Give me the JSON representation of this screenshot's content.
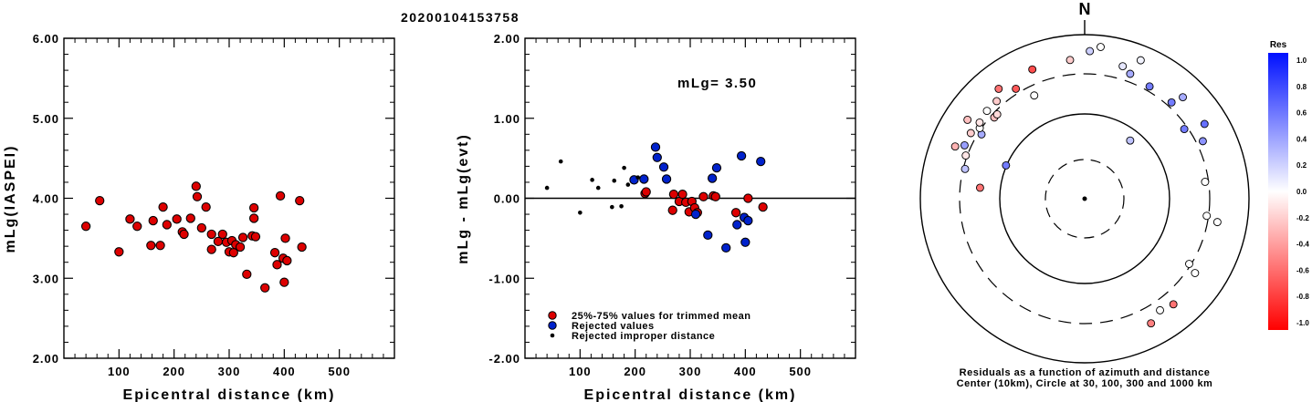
{
  "title": "20200104153758",
  "chart_data": [
    {
      "type": "scatter",
      "xlabel": "Epicentral distance (km)",
      "ylabel": "mLg(IASPEI)",
      "xlim": [
        0,
        600
      ],
      "ylim": [
        2.0,
        6.0
      ],
      "xticks": [
        "100",
        "200",
        "300",
        "400",
        "500"
      ],
      "yticks": [
        "2.00",
        "3.00",
        "4.00",
        "5.00",
        "6.00"
      ],
      "series": [
        {
          "color": "#dd0000",
          "points": [
            [
              40,
              3.65
            ],
            [
              65,
              3.97
            ],
            [
              100,
              3.33
            ],
            [
              120,
              3.74
            ],
            [
              133,
              3.65
            ],
            [
              158,
              3.41
            ],
            [
              162,
              3.72
            ],
            [
              175,
              3.41
            ],
            [
              180,
              3.89
            ],
            [
              187,
              3.67
            ],
            [
              205,
              3.74
            ],
            [
              215,
              3.58
            ],
            [
              218,
              3.55
            ],
            [
              230,
              3.75
            ],
            [
              240,
              4.15
            ],
            [
              242,
              4.02
            ],
            [
              250,
              3.63
            ],
            [
              258,
              3.89
            ],
            [
              268,
              3.55
            ],
            [
              268,
              3.36
            ],
            [
              280,
              3.46
            ],
            [
              288,
              3.55
            ],
            [
              295,
              3.45
            ],
            [
              300,
              3.33
            ],
            [
              305,
              3.47
            ],
            [
              308,
              3.32
            ],
            [
              312,
              3.42
            ],
            [
              320,
              3.39
            ],
            [
              325,
              3.51
            ],
            [
              332,
              3.05
            ],
            [
              342,
              3.53
            ],
            [
              345,
              3.88
            ],
            [
              345,
              3.75
            ],
            [
              348,
              3.52
            ],
            [
              365,
              2.88
            ],
            [
              383,
              3.32
            ],
            [
              387,
              3.17
            ],
            [
              393,
              4.03
            ],
            [
              398,
              3.25
            ],
            [
              400,
              2.95
            ],
            [
              402,
              3.5
            ],
            [
              405,
              3.22
            ],
            [
              428,
              3.97
            ],
            [
              432,
              3.39
            ]
          ]
        }
      ]
    },
    {
      "type": "scatter",
      "xlabel": "Epicentral distance (km)",
      "ylabel": "mLg - mLg(evt)",
      "xlim": [
        0,
        600
      ],
      "ylim": [
        -2.0,
        2.0
      ],
      "xticks": [
        "100",
        "200",
        "300",
        "400",
        "500"
      ],
      "yticks": [
        "-2.00",
        "-1.00",
        "0.00",
        "1.00",
        "2.00"
      ],
      "annotation": "mLg= 3.50",
      "legend": [
        {
          "label": "25%-75% values for trimmed mean",
          "color": "#dd0000"
        },
        {
          "label": "Rejected values",
          "color": "#0022cc"
        },
        {
          "label": "Rejected improper distance",
          "color": "#000000"
        }
      ],
      "series": [
        {
          "name": "25%-75% values for trimmed mean",
          "color": "#dd0000",
          "points": [
            [
              218,
              0.06
            ],
            [
              220,
              0.08
            ],
            [
              268,
              -0.15
            ],
            [
              270,
              0.05
            ],
            [
              280,
              -0.04
            ],
            [
              286,
              0.05
            ],
            [
              292,
              -0.05
            ],
            [
              298,
              -0.17
            ],
            [
              303,
              -0.04
            ],
            [
              308,
              -0.12
            ],
            [
              313,
              -0.18
            ],
            [
              324,
              0.02
            ],
            [
              342,
              0.03
            ],
            [
              346,
              0.02
            ],
            [
              383,
              -0.18
            ],
            [
              405,
              0.0
            ],
            [
              432,
              -0.11
            ]
          ]
        },
        {
          "name": "Rejected values",
          "color": "#0022cc",
          "points": [
            [
              198,
              0.23
            ],
            [
              216,
              0.24
            ],
            [
              237,
              0.64
            ],
            [
              240,
              0.51
            ],
            [
              252,
              0.39
            ],
            [
              257,
              0.24
            ],
            [
              310,
              -0.2
            ],
            [
              332,
              -0.46
            ],
            [
              340,
              0.25
            ],
            [
              348,
              0.38
            ],
            [
              365,
              -0.62
            ],
            [
              385,
              -0.33
            ],
            [
              393,
              0.53
            ],
            [
              398,
              -0.24
            ],
            [
              400,
              -0.55
            ],
            [
              405,
              -0.28
            ],
            [
              428,
              0.46
            ]
          ]
        },
        {
          "name": "Rejected improper distance",
          "color": "#000000",
          "points": [
            [
              40,
              0.13
            ],
            [
              65,
              0.46
            ],
            [
              100,
              -0.18
            ],
            [
              122,
              0.23
            ],
            [
              133,
              0.13
            ],
            [
              158,
              -0.11
            ],
            [
              162,
              0.22
            ],
            [
              175,
              -0.1
            ],
            [
              180,
              0.38
            ],
            [
              187,
              0.17
            ],
            [
              205,
              0.26
            ]
          ]
        }
      ]
    },
    {
      "type": "scatter",
      "north_label": "N",
      "caption_line1": "Residuals as a function of azimuth and distance",
      "caption_line2": "Center (10km), Circle at 30, 100, 300 and 1000 km",
      "colorbar_title": "Res",
      "colorbar_ticks": [
        "1.0",
        "0.8",
        "0.6",
        "0.4",
        "0.2",
        "0.0",
        "-0.2",
        "-0.4",
        "-0.6",
        "-0.8",
        "-1.0"
      ],
      "stations": [
        {
          "az": 20,
          "r": 0.81,
          "res": 0.35
        },
        {
          "az": 30,
          "r": 0.79,
          "res": 0.55
        },
        {
          "az": 42,
          "r": 0.79,
          "res": 0.55
        },
        {
          "az": 44,
          "r": 0.86,
          "res": 0.35
        },
        {
          "az": 55,
          "r": 0.74,
          "res": 0.55
        },
        {
          "az": 58,
          "r": 0.86,
          "res": 0.6
        },
        {
          "az": 64,
          "r": 0.8,
          "res": 0.45
        },
        {
          "az": 22,
          "r": 0.91,
          "res": 0.05
        },
        {
          "az": 16,
          "r": 0.84,
          "res": 0.1
        },
        {
          "az": 38,
          "r": 0.45,
          "res": 0.25
        },
        {
          "az": 82,
          "r": 0.74,
          "res": 0.0
        },
        {
          "az": 98,
          "r": 0.75,
          "res": 0.0
        },
        {
          "az": 100,
          "r": 0.82,
          "res": 0.0
        },
        {
          "az": 122,
          "r": 0.75,
          "res": 0.0
        },
        {
          "az": 124,
          "r": 0.81,
          "res": 0.0
        },
        {
          "az": 140,
          "r": 0.84,
          "res": -0.55
        },
        {
          "az": 146,
          "r": 0.82,
          "res": 0.0
        },
        {
          "az": 152,
          "r": 0.86,
          "res": -0.5
        },
        {
          "az": 276,
          "r": 0.64,
          "res": -0.55
        },
        {
          "az": 284,
          "r": 0.75,
          "res": 0.25
        },
        {
          "az": 290,
          "r": 0.77,
          "res": -0.1
        },
        {
          "az": 292,
          "r": 0.85,
          "res": -0.3
        },
        {
          "az": 293,
          "r": 0.52,
          "res": 0.55
        },
        {
          "az": 294,
          "r": 0.8,
          "res": 0.4
        },
        {
          "az": 300,
          "r": 0.8,
          "res": -0.2
        },
        {
          "az": 302,
          "r": 0.74,
          "res": 0.35
        },
        {
          "az": 304,
          "r": 0.77,
          "res": 0.0
        },
        {
          "az": 304,
          "r": 0.86,
          "res": -0.25
        },
        {
          "az": 306,
          "r": 0.79,
          "res": -0.1
        },
        {
          "az": 312,
          "r": 0.74,
          "res": -0.25
        },
        {
          "az": 314,
          "r": 0.74,
          "res": -0.15
        },
        {
          "az": 312,
          "r": 0.8,
          "res": 0.0
        },
        {
          "az": 318,
          "r": 0.8,
          "res": -0.2
        },
        {
          "az": 322,
          "r": 0.85,
          "res": -0.55
        },
        {
          "az": 328,
          "r": 0.79,
          "res": -0.65
        },
        {
          "az": 334,
          "r": 0.7,
          "res": 0.0
        },
        {
          "az": 338,
          "r": 0.85,
          "res": -0.7
        },
        {
          "az": 354,
          "r": 0.85,
          "res": -0.2
        },
        {
          "az": 2,
          "r": 0.9,
          "res": 0.2
        },
        {
          "az": 6,
          "r": 0.93,
          "res": 0.0
        }
      ]
    }
  ]
}
